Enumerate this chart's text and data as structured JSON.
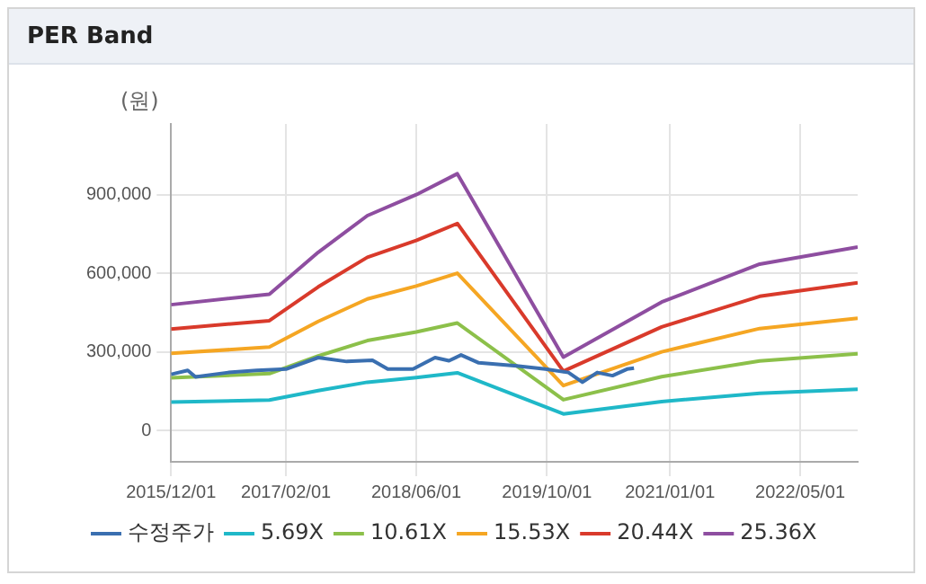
{
  "chart_data": {
    "type": "line",
    "title": "PER Band",
    "ylabel": "(원)",
    "xlim": [
      "2015-12-01",
      "2022-12-01"
    ],
    "xticks": [
      {
        "value": "2015-12-01",
        "label": "2015/12/01"
      },
      {
        "value": "2017-02-01",
        "label": "2017/02/01"
      },
      {
        "value": "2018-06-01",
        "label": "2018/06/01"
      },
      {
        "value": "2019-10-01",
        "label": "2019/10/01"
      },
      {
        "value": "2021-01-01",
        "label": "2021/01/01"
      },
      {
        "value": "2022-05-01",
        "label": "2022/05/01"
      }
    ],
    "ylim": [
      -120000,
      1170000
    ],
    "yticks": [
      {
        "value": 0,
        "label": "0"
      },
      {
        "value": 300000,
        "label": "300,000"
      },
      {
        "value": 600000,
        "label": "600,000"
      },
      {
        "value": 900000,
        "label": "900,000"
      }
    ],
    "grid": true,
    "legend": "bottom",
    "marker": "none",
    "line_style": "solid",
    "series": [
      {
        "name": "수정주가",
        "color": "#3a6fb0",
        "x": [
          "2015-12-01",
          "2016-02-01",
          "2016-03-01",
          "2016-07-01",
          "2016-10-15",
          "2017-02-01",
          "2017-06-01",
          "2017-09-15",
          "2017-12-20",
          "2018-02-15",
          "2018-05-20",
          "2018-08-10",
          "2018-10-01",
          "2018-11-15",
          "2019-01-20",
          "2019-06-10",
          "2019-09-25",
          "2019-12-20",
          "2020-02-10",
          "2020-04-05",
          "2020-06-01",
          "2020-07-25",
          "2020-08-20"
        ],
        "values": [
          214000,
          229000,
          204000,
          221000,
          229000,
          234000,
          278000,
          263000,
          268000,
          234000,
          234000,
          278000,
          266000,
          288000,
          258000,
          246000,
          234000,
          221000,
          184000,
          221000,
          209000,
          234000,
          238000
        ]
      },
      {
        "name": "5.69X",
        "color": "#1fb8c8",
        "x": [
          "2015-12-01",
          "2016-12-01",
          "2017-06-01",
          "2017-12-01",
          "2018-06-01",
          "2018-11-01",
          "2019-12-01",
          "2020-12-01",
          "2021-12-01",
          "2022-12-01"
        ],
        "values": [
          108000,
          116000,
          152000,
          184000,
          202000,
          220000,
          63000,
          110000,
          142000,
          157000
        ]
      },
      {
        "name": "10.61X",
        "color": "#8cc04a",
        "x": [
          "2015-12-01",
          "2016-12-01",
          "2017-06-01",
          "2017-12-01",
          "2018-06-01",
          "2018-11-01",
          "2019-12-01",
          "2020-12-01",
          "2021-12-01",
          "2022-12-01"
        ],
        "values": [
          201000,
          217000,
          284000,
          343000,
          376000,
          410000,
          117000,
          205000,
          265000,
          293000
        ]
      },
      {
        "name": "15.53X",
        "color": "#f5a623",
        "x": [
          "2015-12-01",
          "2016-12-01",
          "2017-06-01",
          "2017-12-01",
          "2018-06-01",
          "2018-11-01",
          "2019-12-01",
          "2020-12-01",
          "2021-12-01",
          "2022-12-01"
        ],
        "values": [
          294000,
          318000,
          416000,
          502000,
          551000,
          600000,
          171000,
          300000,
          389000,
          428000
        ]
      },
      {
        "name": "20.44X",
        "color": "#d93a2b",
        "x": [
          "2015-12-01",
          "2016-12-01",
          "2017-06-01",
          "2017-12-01",
          "2018-06-01",
          "2018-11-01",
          "2019-12-01",
          "2020-12-01",
          "2021-12-01",
          "2022-12-01"
        ],
        "values": [
          387000,
          419000,
          548000,
          661000,
          725000,
          790000,
          226000,
          395000,
          512000,
          564000
        ]
      },
      {
        "name": "25.36X",
        "color": "#8e4ea0",
        "x": [
          "2015-12-01",
          "2016-12-01",
          "2017-06-01",
          "2017-12-01",
          "2018-06-01",
          "2018-11-01",
          "2019-12-01",
          "2020-12-01",
          "2021-12-01",
          "2022-12-01"
        ],
        "values": [
          480000,
          520000,
          680000,
          820000,
          900000,
          980000,
          280000,
          490000,
          635000,
          700000
        ]
      }
    ]
  }
}
